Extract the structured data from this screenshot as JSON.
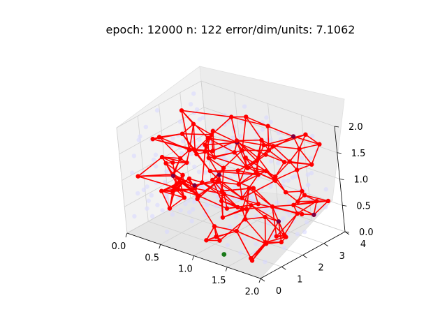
{
  "chart_data": {
    "type": "scatter",
    "projection": "3d",
    "title": "epoch: 12000 n: 122 error/dim/units: 7.1062",
    "xlim": [
      0,
      2
    ],
    "ylim": [
      0,
      4
    ],
    "zlim": [
      0,
      2
    ],
    "x_ticks": [
      "0.0",
      "0.5",
      "1.0",
      "1.5",
      "2.0"
    ],
    "y_ticks": [
      "0",
      "1",
      "2",
      "3",
      "4"
    ],
    "z_ticks": [
      "0.0",
      "0.5",
      "1.0",
      "1.5",
      "2.0"
    ],
    "grid": true,
    "colors": {
      "units": "#ff0000",
      "edges": "#ff0000",
      "data_points": "#d9d9ff",
      "highlight_point": "#1a7a1a",
      "dark_units": "#800040"
    },
    "series": [
      {
        "kind": "network-units",
        "count": 122
      },
      {
        "kind": "network-edges"
      },
      {
        "kind": "data-samples"
      }
    ]
  }
}
